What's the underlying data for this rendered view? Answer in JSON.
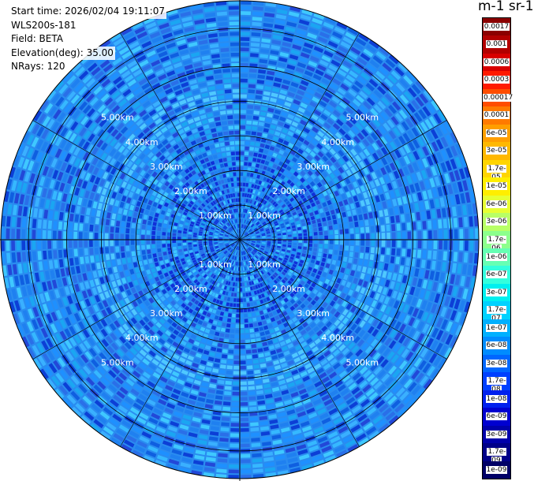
{
  "info": {
    "start_time": "Start time: 2026/02/04 19:11:07",
    "instrument": "WLS200s-181",
    "field": "Field: BETA",
    "elevation": "Elevation(deg): 35.00",
    "nrays": "NRays: 120"
  },
  "colorbar": {
    "title": "m-1 sr-1",
    "labels": [
      "0.0017",
      "0.001",
      "0.0006",
      "0.0003",
      "0.00017",
      "0.0001",
      "6e-05",
      "3e-05",
      "1.7e-05",
      "1e-05",
      "6e-06",
      "3e-06",
      "1.7e-06",
      "1e-06",
      "6e-07",
      "3e-07",
      "1.7e-07",
      "1e-07",
      "6e-08",
      "3e-08",
      "1.7e-08",
      "1e-08",
      "6e-09",
      "3e-09",
      "1.7e-09",
      "1e-09"
    ],
    "colors": [
      "#8b0000",
      "#b20000",
      "#d80000",
      "#ff1a00",
      "#ff4d00",
      "#ff7a00",
      "#ff9e00",
      "#ffb800",
      "#ffd500",
      "#ffee00",
      "#e6ff33",
      "#b8ff66",
      "#8cff8c",
      "#66ffb3",
      "#33ffdd",
      "#00f0f0",
      "#00d2ff",
      "#00b0ff",
      "#008cff",
      "#0066ff",
      "#0040ff",
      "#0020ee",
      "#0000d0",
      "#0000aa",
      "#000088",
      "#000066"
    ]
  },
  "chart_data": {
    "type": "heatmap",
    "projection": "polar-ppi",
    "field": "BETA",
    "units": "m-1 sr-1",
    "elevation_deg": 35.0,
    "n_rays": 120,
    "range_rings_km": [
      1.0,
      2.0,
      3.0,
      4.0,
      5.0
    ],
    "range_labels": [
      "1.00km",
      "2.00km",
      "3.00km",
      "4.00km",
      "5.00km"
    ],
    "max_range_km": 6.9,
    "typical_value": "1e-08 to 3e-08",
    "color_scale": "log",
    "vmin": 1e-09,
    "vmax": 0.0017
  }
}
